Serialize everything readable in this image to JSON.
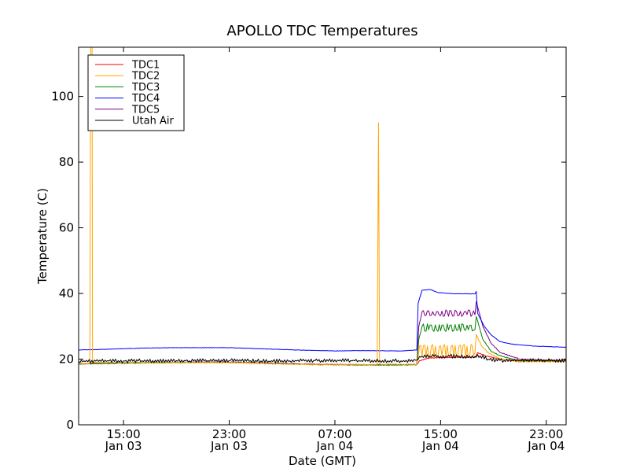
{
  "chart_data": {
    "type": "line",
    "title": "APOLLO TDC Temperatures",
    "xlabel": "Date (GMT)",
    "ylabel": "Temperature (C)",
    "x_unit": "hours since Jan 03 00:00 GMT",
    "xlim": [
      11.6,
      48.5
    ],
    "ylim": [
      0,
      115
    ],
    "grid": false,
    "legend_position": "top-left",
    "x_ticks": [
      {
        "value": 15,
        "time": "15:00",
        "date": "Jan 03"
      },
      {
        "value": 23,
        "time": "23:00",
        "date": "Jan 03"
      },
      {
        "value": 31,
        "time": "07:00",
        "date": "Jan 04"
      },
      {
        "value": 39,
        "time": "15:00",
        "date": "Jan 04"
      },
      {
        "value": 47,
        "time": "23:00",
        "date": "Jan 04"
      }
    ],
    "y_ticks": [
      {
        "value": 0,
        "label": "0"
      },
      {
        "value": 20,
        "label": "20"
      },
      {
        "value": 40,
        "label": "40"
      },
      {
        "value": 60,
        "label": "60"
      },
      {
        "value": 80,
        "label": "80"
      },
      {
        "value": 100,
        "label": "100"
      }
    ],
    "series": [
      {
        "name": "TDC1",
        "color": "#ff0000",
        "ripple": 0.15,
        "points": [
          [
            11.6,
            18.6
          ],
          [
            15,
            18.9
          ],
          [
            20,
            19.0
          ],
          [
            23,
            19.0
          ],
          [
            26,
            18.7
          ],
          [
            30,
            18.4
          ],
          [
            33,
            18.3
          ],
          [
            36,
            18.3
          ],
          [
            37.2,
            18.4
          ],
          [
            37.4,
            19.5
          ],
          [
            38,
            20.3
          ],
          [
            40,
            20.5
          ],
          [
            41.6,
            20.5
          ],
          [
            41.8,
            22.0
          ],
          [
            42.4,
            21.0
          ],
          [
            43.5,
            20.0
          ],
          [
            45,
            19.5
          ],
          [
            48.5,
            19.4
          ]
        ]
      },
      {
        "name": "TDC2",
        "color": "#ffa500",
        "ripple": 0.2,
        "points": [
          [
            11.6,
            18.6
          ],
          [
            12.45,
            18.6
          ],
          [
            12.5,
            100
          ],
          [
            12.52,
            115
          ],
          [
            12.62,
            115
          ],
          [
            12.65,
            19.0
          ],
          [
            15,
            19.0
          ],
          [
            20,
            19.0
          ],
          [
            23,
            19.0
          ],
          [
            26,
            18.6
          ],
          [
            30,
            18.3
          ],
          [
            34.2,
            18.3
          ],
          [
            34.3,
            92
          ],
          [
            34.38,
            18.4
          ],
          [
            37.2,
            18.4
          ],
          [
            37.35,
            22.0
          ],
          [
            37.5,
            24.0
          ],
          [
            38.3,
            21.5
          ],
          [
            39,
            22.0
          ],
          [
            41.6,
            22.0
          ],
          [
            41.7,
            27.5
          ],
          [
            42.1,
            24.0
          ],
          [
            42.6,
            22.0
          ],
          [
            43.5,
            20.0
          ],
          [
            45,
            19.2
          ],
          [
            48.5,
            19.2
          ]
        ],
        "spikes": [
          [
            37.35,
            41.6,
            0.3,
            24.5,
            20.5
          ]
        ]
      },
      {
        "name": "TDC3",
        "color": "#008000",
        "ripple": 0.15,
        "points": [
          [
            11.6,
            18.5
          ],
          [
            15,
            18.8
          ],
          [
            20,
            19.0
          ],
          [
            23,
            19.0
          ],
          [
            26,
            18.7
          ],
          [
            30,
            18.3
          ],
          [
            33,
            18.2
          ],
          [
            36,
            18.2
          ],
          [
            37.2,
            18.3
          ],
          [
            37.35,
            26.0
          ],
          [
            37.6,
            30.0
          ],
          [
            38.5,
            30.0
          ],
          [
            39.5,
            29.3
          ],
          [
            41.6,
            29.0
          ],
          [
            41.7,
            33.0
          ],
          [
            42.2,
            26.0
          ],
          [
            42.8,
            22.5
          ],
          [
            43.5,
            21.0
          ],
          [
            45,
            19.5
          ],
          [
            48.5,
            19.2
          ]
        ],
        "spikes": [
          [
            37.6,
            41.6,
            0.3,
            30.8,
            28.4
          ]
        ]
      },
      {
        "name": "TDC4",
        "color": "#0000ff",
        "ripple": 0.08,
        "points": [
          [
            11.6,
            22.8
          ],
          [
            13,
            22.9
          ],
          [
            15,
            23.2
          ],
          [
            17,
            23.4
          ],
          [
            19,
            23.5
          ],
          [
            23,
            23.5
          ],
          [
            25,
            23.2
          ],
          [
            28,
            22.8
          ],
          [
            31,
            22.5
          ],
          [
            33,
            22.6
          ],
          [
            36,
            22.5
          ],
          [
            37.2,
            22.8
          ],
          [
            37.3,
            37.0
          ],
          [
            37.6,
            41.0
          ],
          [
            38.2,
            41.2
          ],
          [
            38.8,
            40.3
          ],
          [
            40,
            39.9
          ],
          [
            41.6,
            39.9
          ],
          [
            41.7,
            40.6
          ],
          [
            41.8,
            34.0
          ],
          [
            42.3,
            30.0
          ],
          [
            42.8,
            27.5
          ],
          [
            43.5,
            25.3
          ],
          [
            44.5,
            24.5
          ],
          [
            46,
            24.0
          ],
          [
            48.5,
            23.6
          ]
        ]
      },
      {
        "name": "TDC5",
        "color": "#800080",
        "ripple": 0.15,
        "points": [
          [
            11.6,
            18.5
          ],
          [
            15,
            18.8
          ],
          [
            20,
            19.1
          ],
          [
            23,
            19.1
          ],
          [
            26,
            18.8
          ],
          [
            30,
            18.4
          ],
          [
            33,
            18.3
          ],
          [
            36,
            18.3
          ],
          [
            37.2,
            18.4
          ],
          [
            37.35,
            30.0
          ],
          [
            37.6,
            34.5
          ],
          [
            38.2,
            35.0
          ],
          [
            39,
            34.0
          ],
          [
            41.6,
            33.5
          ],
          [
            41.7,
            37.5
          ],
          [
            42.2,
            30.0
          ],
          [
            42.8,
            25.0
          ],
          [
            43.5,
            22.0
          ],
          [
            45,
            20.0
          ],
          [
            48.5,
            19.5
          ]
        ],
        "spikes": [
          [
            37.6,
            41.6,
            0.35,
            35.0,
            33.0
          ]
        ]
      },
      {
        "name": "Utah Air",
        "color": "#000000",
        "ripple": 0.6,
        "points": [
          [
            11.6,
            19.4
          ],
          [
            15,
            19.5
          ],
          [
            20,
            19.5
          ],
          [
            23,
            19.6
          ],
          [
            26,
            19.4
          ],
          [
            30,
            19.6
          ],
          [
            33,
            19.5
          ],
          [
            36,
            19.5
          ],
          [
            37.2,
            19.7
          ],
          [
            37.4,
            20.8
          ],
          [
            39,
            20.9
          ],
          [
            41.6,
            20.8
          ],
          [
            42,
            21.0
          ],
          [
            42.6,
            20.0
          ],
          [
            43.5,
            19.6
          ],
          [
            45,
            19.6
          ],
          [
            48.5,
            19.6
          ]
        ]
      }
    ]
  }
}
